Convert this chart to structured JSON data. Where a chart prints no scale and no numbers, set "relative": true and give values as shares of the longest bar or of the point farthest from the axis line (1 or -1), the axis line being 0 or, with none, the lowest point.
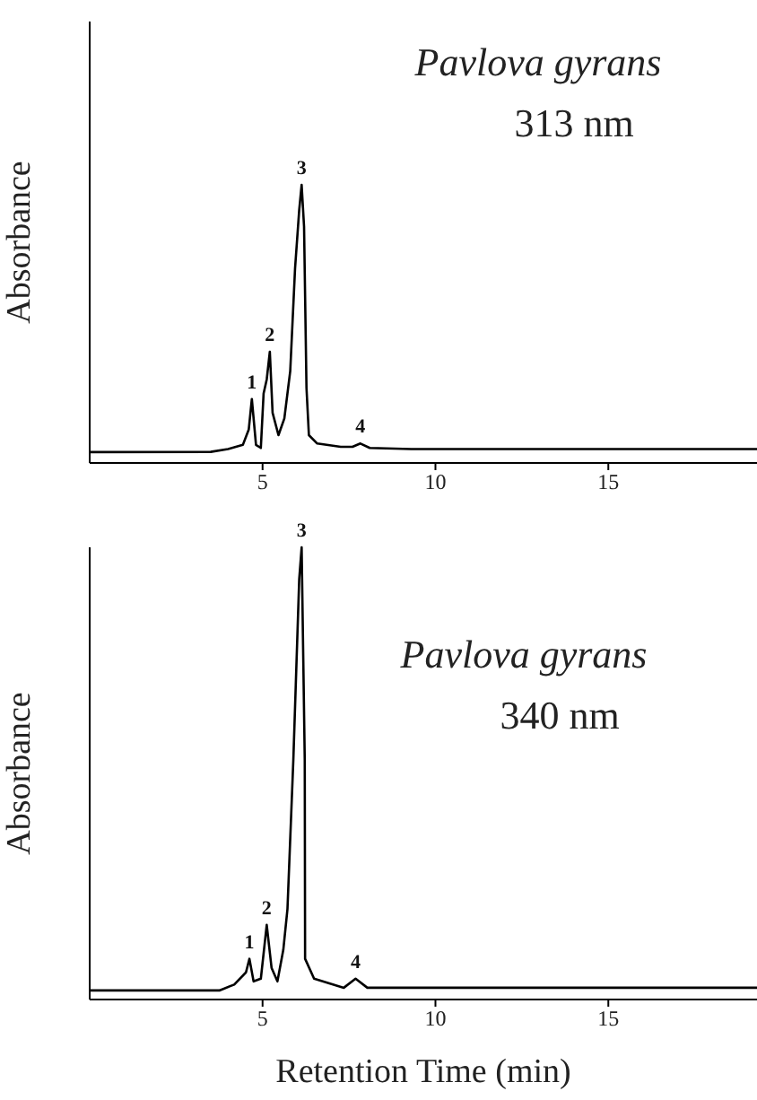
{
  "chart_data": [
    {
      "type": "line",
      "title": "Pavlova gyrans",
      "subtitle": "313 nm",
      "ylabel": "Absorbance",
      "relative": true,
      "color": "#000000",
      "tick_labels": "x",
      "xlim": [
        0,
        19.3
      ],
      "xticks": [
        5,
        10,
        15
      ],
      "x": [
        0,
        3.5,
        4.0,
        4.43,
        4.6,
        4.69,
        4.81,
        4.95,
        5.03,
        5.12,
        5.21,
        5.29,
        5.46,
        5.63,
        5.8,
        5.94,
        6.06,
        6.13,
        6.2,
        6.27,
        6.34,
        6.58,
        7.26,
        7.6,
        7.83,
        8.1,
        9.3,
        19.3
      ],
      "values": [
        0.039,
        0.04,
        0.05,
        0.065,
        0.12,
        0.23,
        0.065,
        0.054,
        0.25,
        0.3,
        0.4,
        0.18,
        0.1,
        0.16,
        0.33,
        0.7,
        0.91,
        1.0,
        0.85,
        0.27,
        0.1,
        0.07,
        0.058,
        0.058,
        0.07,
        0.054,
        0.05,
        0.05
      ],
      "annotations": [
        {
          "text": "1",
          "x": 4.69,
          "y": 0.23
        },
        {
          "text": "2",
          "x": 5.21,
          "y": 0.4
        },
        {
          "text": "3",
          "x": 6.13,
          "y": 1.0
        },
        {
          "text": "4",
          "x": 7.83,
          "y": 0.07
        }
      ]
    },
    {
      "type": "line",
      "title": "Pavlova gyrans",
      "subtitle": "340 nm",
      "xlabel": "Retention Time (min)",
      "ylabel": "Absorbance",
      "relative": true,
      "color": "#000000",
      "tick_labels": "x",
      "xlim": [
        0,
        19.3
      ],
      "xticks": [
        5,
        10,
        15
      ],
      "x": [
        0,
        3.75,
        4.18,
        4.52,
        4.62,
        4.74,
        4.95,
        5.12,
        5.26,
        5.43,
        5.6,
        5.72,
        5.89,
        6.06,
        6.13,
        6.22,
        6.23,
        6.49,
        7.35,
        7.69,
        8.03,
        19.3
      ],
      "values": [
        0.02,
        0.02,
        0.033,
        0.06,
        0.09,
        0.04,
        0.046,
        0.165,
        0.07,
        0.04,
        0.11,
        0.2,
        0.53,
        0.93,
        1.0,
        0.53,
        0.09,
        0.046,
        0.026,
        0.046,
        0.026,
        0.026
      ],
      "annotations": [
        {
          "text": "1",
          "x": 4.62,
          "y": 0.09
        },
        {
          "text": "2",
          "x": 5.12,
          "y": 0.165
        },
        {
          "text": "3",
          "x": 6.13,
          "y": 1.0
        },
        {
          "text": "4",
          "x": 7.69,
          "y": 0.046
        }
      ]
    }
  ]
}
